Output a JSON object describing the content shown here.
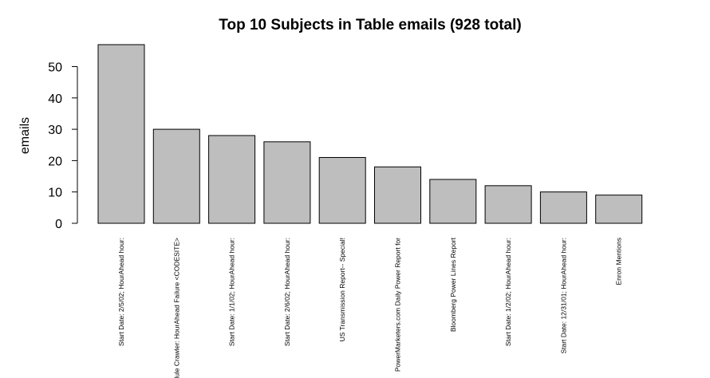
{
  "chart_data": {
    "type": "bar",
    "title": "Top 10 Subjects in Table emails (928 total)",
    "xlabel": "",
    "ylabel": "emails",
    "ylim": [
      0,
      57
    ],
    "yticks": [
      0,
      10,
      20,
      30,
      40,
      50
    ],
    "categories": [
      "Start Date: 2/5/02; HourAhead hour:",
      "Schedule Crawler: HourAhead Failure <CODESITE>",
      "Start Date: 1/1/02; HourAhead hour:",
      "Start Date: 2/6/02; HourAhead hour:",
      "US Transmission Report-- Special!",
      "PowerMarketers.com Daily Power Report for",
      "Bloomberg Power Lines Report",
      "Start Date: 1/2/02; HourAhead hour:",
      "Start Date: 12/31/01; HourAhead hour:",
      "Enron Mentions"
    ],
    "values": [
      57,
      30,
      28,
      26,
      21,
      18,
      14,
      12,
      10,
      9
    ],
    "bar_color": "#bebebe",
    "grid": false,
    "legend": "none"
  }
}
